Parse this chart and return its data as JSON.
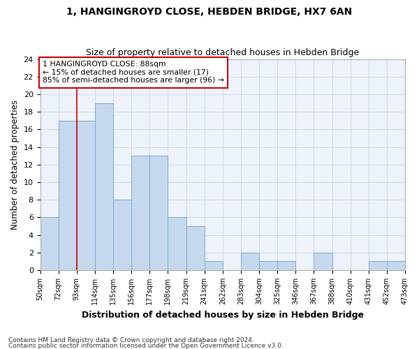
{
  "title1": "1, HANGINGROYD CLOSE, HEBDEN BRIDGE, HX7 6AN",
  "title2": "Size of property relative to detached houses in Hebden Bridge",
  "xlabel": "Distribution of detached houses by size in Hebden Bridge",
  "ylabel": "Number of detached properties",
  "footer1": "Contains HM Land Registry data © Crown copyright and database right 2024.",
  "footer2": "Contains public sector information licensed under the Open Government Licence v3.0.",
  "annotation_line1": "1 HANGINGROYD CLOSE: 88sqm",
  "annotation_line2": "← 15% of detached houses are smaller (17)",
  "annotation_line3": "85% of semi-detached houses are larger (96) →",
  "bar_color": "#c5d8ee",
  "bar_edge_color": "#7aaad0",
  "grid_color": "#d0d8e8",
  "vline_color": "#cc0000",
  "annotation_box_color": "#cc0000",
  "bins": [
    "50sqm",
    "72sqm",
    "93sqm",
    "114sqm",
    "135sqm",
    "156sqm",
    "177sqm",
    "198sqm",
    "219sqm",
    "241sqm",
    "262sqm",
    "283sqm",
    "304sqm",
    "325sqm",
    "346sqm",
    "367sqm",
    "388sqm",
    "410sqm",
    "431sqm",
    "452sqm",
    "473sqm"
  ],
  "values": [
    6,
    17,
    17,
    19,
    8,
    13,
    13,
    6,
    5,
    1,
    0,
    2,
    1,
    1,
    0,
    2,
    0,
    0,
    1,
    1
  ],
  "vline_x": 2.0,
  "ylim": [
    0,
    24
  ],
  "yticks": [
    0,
    2,
    4,
    6,
    8,
    10,
    12,
    14,
    16,
    18,
    20,
    22,
    24
  ],
  "background_color": "#eef2fa"
}
